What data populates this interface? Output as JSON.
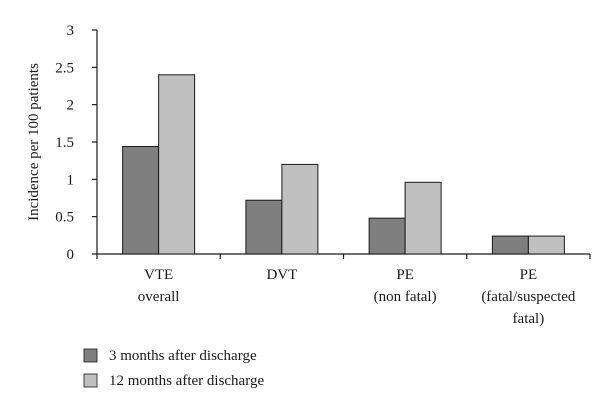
{
  "chart_data": {
    "type": "bar",
    "ylabel": "Incidence per 100 patients",
    "xlabel": "",
    "ylim": [
      0,
      3
    ],
    "yticks": [
      "0",
      "0.5",
      "1",
      "1.5",
      "2",
      "2.5",
      "3"
    ],
    "ytick_values": [
      0,
      0.5,
      1,
      1.5,
      2,
      2.5,
      3
    ],
    "categories": [
      [
        "VTE",
        "overall"
      ],
      [
        "DVT"
      ],
      [
        "PE",
        "(non fatal)"
      ],
      [
        "PE",
        "(fatal/suspected",
        "fatal)"
      ]
    ],
    "series": [
      {
        "name": "3 months after discharge",
        "color": "#7f7f7f",
        "values": [
          1.44,
          0.72,
          0.48,
          0.24
        ]
      },
      {
        "name": "12 months after discharge",
        "color": "#c0c0c0",
        "values": [
          2.4,
          1.2,
          0.96,
          0.24
        ]
      }
    ],
    "grid": false,
    "legend": "bottom-left"
  }
}
